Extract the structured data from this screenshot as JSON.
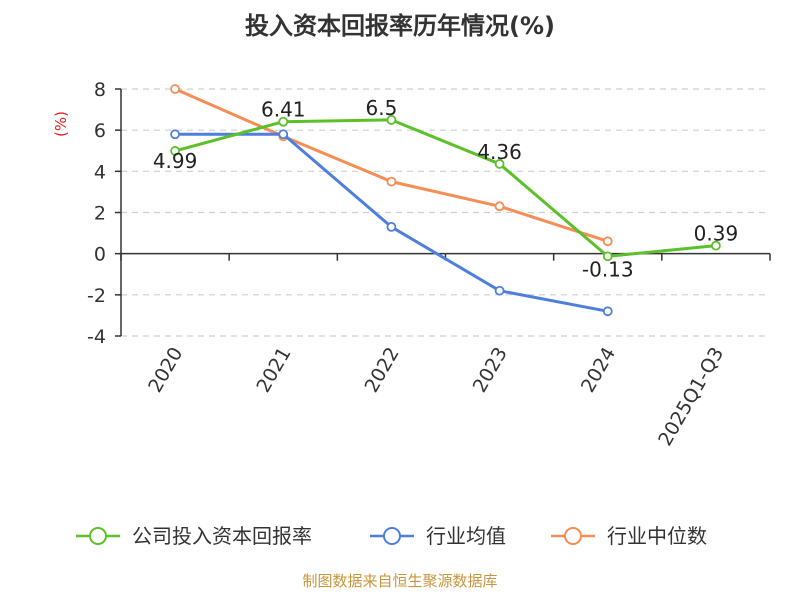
{
  "chart_data": {
    "type": "line",
    "title": "投入资本回报率历年情况(%)",
    "unit_label": "(%)",
    "categories": [
      "2020",
      "2021",
      "2022",
      "2023",
      "2024",
      "2025Q1-Q3"
    ],
    "ylim": [
      -4,
      8
    ],
    "yticks": [
      8,
      6,
      4,
      2,
      0,
      -2,
      -4
    ],
    "grid": true,
    "legend_position": "bottom",
    "series": [
      {
        "name": "公司投入资本回报率",
        "color": "#5cc02b",
        "values": [
          4.99,
          6.41,
          6.5,
          4.36,
          -0.13,
          0.39
        ],
        "labels": [
          "4.99",
          "6.41",
          "6.5",
          "4.36",
          "-0.13",
          "0.39"
        ]
      },
      {
        "name": "行业均值",
        "color": "#4f7fdc",
        "values": [
          5.8,
          5.8,
          1.3,
          -1.8,
          -2.8,
          null
        ]
      },
      {
        "name": "行业中位数",
        "color": "#f58d55",
        "values": [
          8.0,
          5.7,
          3.5,
          2.3,
          0.6,
          null
        ]
      }
    ]
  },
  "source": "制图数据来自恒生聚源数据库"
}
